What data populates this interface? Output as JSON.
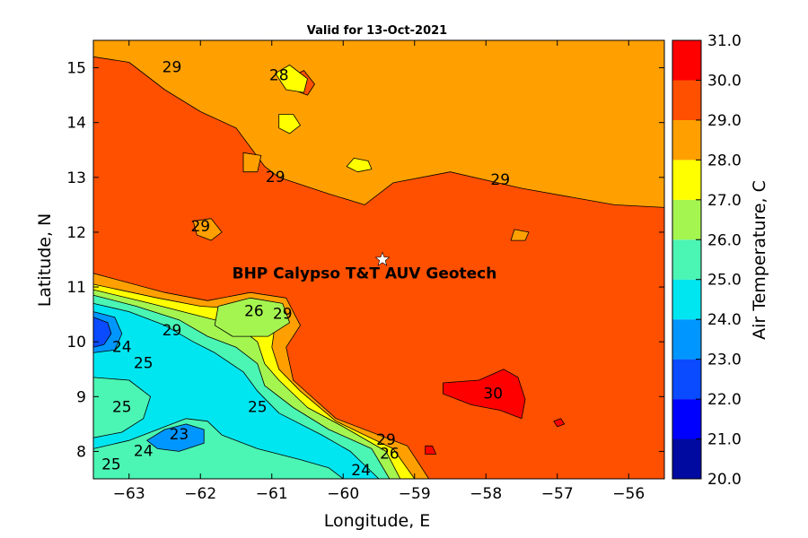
{
  "chart_data": {
    "type": "heatmap",
    "title": "Valid for 13-Oct-2021",
    "xlabel": "Longitude, E",
    "ylabel": "Latitude, N",
    "xlim": [
      -63.5,
      -55.5
    ],
    "ylim": [
      7.5,
      15.5
    ],
    "xticks": [
      -63,
      -62,
      -61,
      -60,
      -59,
      -58,
      -57,
      -56
    ],
    "yticks": [
      8,
      9,
      10,
      11,
      12,
      13,
      14,
      15
    ],
    "colorbar": {
      "label": "Air Temperature, C",
      "ticks": [
        "20.0",
        "21.0",
        "22.0",
        "23.0",
        "24.0",
        "25.0",
        "26.0",
        "27.0",
        "28.0",
        "29.0",
        "30.0",
        "31.0"
      ],
      "levels": [
        {
          "min": 20,
          "max": 21,
          "color": "#000aa0"
        },
        {
          "min": 21,
          "max": 22,
          "color": "#0000ff"
        },
        {
          "min": 22,
          "max": 23,
          "color": "#0a4bff"
        },
        {
          "min": 23,
          "max": 24,
          "color": "#0096ff"
        },
        {
          "min": 24,
          "max": 25,
          "color": "#00e6f0"
        },
        {
          "min": 25,
          "max": 26,
          "color": "#4bf5b4"
        },
        {
          "min": 26,
          "max": 27,
          "color": "#a5f550"
        },
        {
          "min": 27,
          "max": 28,
          "color": "#ffff00"
        },
        {
          "min": 28,
          "max": 29,
          "color": "#ffa000"
        },
        {
          "min": 29,
          "max": 30,
          "color": "#ff5000"
        },
        {
          "min": 30,
          "max": 31,
          "color": "#ff0000"
        }
      ]
    },
    "site": {
      "label": "BHP Calypso T&T AUV Geotech",
      "lon": -59.45,
      "lat": 11.5
    },
    "contour_labels": [
      {
        "text": "29",
        "lon": -62.4,
        "lat": 15.0
      },
      {
        "text": "28",
        "lon": -60.9,
        "lat": 14.85
      },
      {
        "text": "29",
        "lon": -60.95,
        "lat": 13.0
      },
      {
        "text": "29",
        "lon": -62.0,
        "lat": 12.1
      },
      {
        "text": "29",
        "lon": -57.8,
        "lat": 12.95
      },
      {
        "text": "26",
        "lon": -61.25,
        "lat": 10.55
      },
      {
        "text": "29",
        "lon": -60.85,
        "lat": 10.5
      },
      {
        "text": "29",
        "lon": -62.4,
        "lat": 10.2
      },
      {
        "text": "24",
        "lon": -63.1,
        "lat": 9.9
      },
      {
        "text": "25",
        "lon": -62.8,
        "lat": 9.6
      },
      {
        "text": "30",
        "lon": -57.9,
        "lat": 9.05
      },
      {
        "text": "25",
        "lon": -63.1,
        "lat": 8.8
      },
      {
        "text": "25",
        "lon": -61.2,
        "lat": 8.8
      },
      {
        "text": "23",
        "lon": -62.3,
        "lat": 8.3
      },
      {
        "text": "24",
        "lon": -62.8,
        "lat": 8.0
      },
      {
        "text": "25",
        "lon": -63.25,
        "lat": 7.75
      },
      {
        "text": "29",
        "lon": -59.4,
        "lat": 8.2
      },
      {
        "text": "26",
        "lon": -59.35,
        "lat": 7.95
      },
      {
        "text": "24",
        "lon": -59.75,
        "lat": 7.65
      }
    ],
    "regions": [
      {
        "value": 28.5,
        "polygon": [
          [
            -63.5,
            15.5
          ],
          [
            -55.5,
            15.5
          ],
          [
            -55.5,
            12.45
          ],
          [
            -56.2,
            12.5
          ],
          [
            -57.5,
            12.8
          ],
          [
            -58.5,
            13.1
          ],
          [
            -59.3,
            12.9
          ],
          [
            -59.7,
            12.5
          ],
          [
            -60.2,
            12.7
          ],
          [
            -60.9,
            13.0
          ],
          [
            -61.1,
            13.2
          ],
          [
            -61.5,
            13.9
          ],
          [
            -62.0,
            14.2
          ],
          [
            -62.5,
            14.6
          ],
          [
            -63.0,
            15.1
          ],
          [
            -63.5,
            15.2
          ]
        ]
      },
      {
        "value": 28.5,
        "polygon": [
          [
            -63.5,
            11.25
          ],
          [
            -62.5,
            10.9
          ],
          [
            -61.9,
            10.75
          ],
          [
            -61.3,
            10.9
          ],
          [
            -60.8,
            10.8
          ],
          [
            -60.6,
            10.3
          ],
          [
            -60.8,
            9.9
          ],
          [
            -60.7,
            9.3
          ],
          [
            -60.1,
            8.6
          ],
          [
            -59.1,
            8.1
          ],
          [
            -58.8,
            7.5
          ],
          [
            -63.5,
            7.5
          ]
        ]
      },
      {
        "value": 27.5,
        "polygon": [
          [
            -63.5,
            11.05
          ],
          [
            -62.6,
            10.8
          ],
          [
            -62.0,
            10.65
          ],
          [
            -61.4,
            10.6
          ],
          [
            -60.95,
            10.35
          ],
          [
            -61.0,
            9.9
          ],
          [
            -60.9,
            9.5
          ],
          [
            -60.6,
            9.1
          ],
          [
            -60.1,
            8.55
          ],
          [
            -59.3,
            8.05
          ],
          [
            -59.0,
            7.5
          ],
          [
            -63.5,
            7.5
          ]
        ]
      },
      {
        "value": 26.5,
        "polygon": [
          [
            -63.5,
            10.95
          ],
          [
            -62.7,
            10.7
          ],
          [
            -62.1,
            10.5
          ],
          [
            -61.5,
            10.3
          ],
          [
            -61.2,
            10.0
          ],
          [
            -61.1,
            9.6
          ],
          [
            -60.9,
            9.3
          ],
          [
            -60.5,
            8.8
          ],
          [
            -60.0,
            8.45
          ],
          [
            -59.4,
            8.0
          ],
          [
            -59.2,
            7.5
          ],
          [
            -63.5,
            7.5
          ]
        ]
      },
      {
        "value": 26.5,
        "polygon": [
          [
            -61.75,
            10.65
          ],
          [
            -61.3,
            10.8
          ],
          [
            -60.85,
            10.7
          ],
          [
            -60.75,
            10.35
          ],
          [
            -61.05,
            10.1
          ],
          [
            -61.55,
            10.1
          ],
          [
            -61.8,
            10.3
          ]
        ]
      },
      {
        "value": 25.5,
        "polygon": [
          [
            -63.5,
            10.85
          ],
          [
            -62.9,
            10.65
          ],
          [
            -62.3,
            10.4
          ],
          [
            -61.9,
            10.1
          ],
          [
            -61.5,
            9.9
          ],
          [
            -61.2,
            9.6
          ],
          [
            -61.1,
            9.2
          ],
          [
            -60.7,
            8.8
          ],
          [
            -60.2,
            8.4
          ],
          [
            -59.6,
            8.05
          ],
          [
            -59.35,
            7.5
          ],
          [
            -63.5,
            7.5
          ]
        ]
      },
      {
        "value": 24.5,
        "polygon": [
          [
            -63.5,
            10.7
          ],
          [
            -63.0,
            10.55
          ],
          [
            -62.5,
            10.3
          ],
          [
            -62.1,
            10.0
          ],
          [
            -61.8,
            9.8
          ],
          [
            -61.4,
            9.45
          ],
          [
            -61.2,
            9.1
          ],
          [
            -60.9,
            8.7
          ],
          [
            -60.3,
            8.3
          ],
          [
            -59.9,
            8.0
          ],
          [
            -59.5,
            7.5
          ],
          [
            -63.5,
            7.5
          ]
        ]
      },
      {
        "value": 25.5,
        "polygon": [
          [
            -63.5,
            9.35
          ],
          [
            -63.0,
            9.3
          ],
          [
            -62.7,
            9.0
          ],
          [
            -62.8,
            8.6
          ],
          [
            -63.1,
            8.35
          ],
          [
            -63.5,
            8.25
          ]
        ]
      },
      {
        "value": 25.5,
        "polygon": [
          [
            -63.5,
            8.05
          ],
          [
            -63.0,
            8.2
          ],
          [
            -62.5,
            8.45
          ],
          [
            -62.2,
            8.6
          ],
          [
            -61.9,
            8.55
          ],
          [
            -61.7,
            8.3
          ],
          [
            -61.2,
            8.05
          ],
          [
            -60.6,
            7.85
          ],
          [
            -60.2,
            7.7
          ],
          [
            -60.0,
            7.5
          ],
          [
            -63.5,
            7.5
          ]
        ]
      },
      {
        "value": 23.5,
        "polygon": [
          [
            -62.75,
            8.2
          ],
          [
            -62.5,
            8.4
          ],
          [
            -62.2,
            8.5
          ],
          [
            -61.95,
            8.4
          ],
          [
            -61.95,
            8.15
          ],
          [
            -62.3,
            8.0
          ],
          [
            -62.6,
            8.05
          ]
        ]
      },
      {
        "value": 23.5,
        "polygon": [
          [
            -63.5,
            10.55
          ],
          [
            -63.2,
            10.45
          ],
          [
            -63.1,
            10.15
          ],
          [
            -63.2,
            9.85
          ],
          [
            -63.5,
            9.8
          ]
        ]
      },
      {
        "value": 22.5,
        "polygon": [
          [
            -63.5,
            10.45
          ],
          [
            -63.3,
            10.35
          ],
          [
            -63.25,
            10.15
          ],
          [
            -63.35,
            9.95
          ],
          [
            -63.5,
            9.9
          ]
        ]
      },
      {
        "value": 30.5,
        "polygon": [
          [
            -58.6,
            9.25
          ],
          [
            -58.1,
            9.3
          ],
          [
            -57.75,
            9.5
          ],
          [
            -57.55,
            9.35
          ],
          [
            -57.45,
            8.95
          ],
          [
            -57.5,
            8.6
          ],
          [
            -57.8,
            8.75
          ],
          [
            -58.2,
            8.85
          ],
          [
            -58.6,
            9.05
          ]
        ]
      },
      {
        "value": 29.5,
        "polygon": [
          [
            -60.7,
            14.85
          ],
          [
            -60.55,
            14.95
          ],
          [
            -60.4,
            14.7
          ],
          [
            -60.5,
            14.5
          ],
          [
            -60.7,
            14.6
          ]
        ]
      },
      {
        "value": 27.5,
        "polygon": [
          [
            -60.95,
            14.9
          ],
          [
            -60.75,
            15.05
          ],
          [
            -60.5,
            14.8
          ],
          [
            -60.55,
            14.55
          ],
          [
            -60.8,
            14.6
          ]
        ]
      },
      {
        "value": 27.5,
        "polygon": [
          [
            -60.9,
            14.15
          ],
          [
            -60.7,
            14.15
          ],
          [
            -60.6,
            13.95
          ],
          [
            -60.75,
            13.8
          ],
          [
            -60.9,
            13.9
          ]
        ]
      },
      {
        "value": 27.5,
        "polygon": [
          [
            -59.85,
            13.35
          ],
          [
            -59.65,
            13.3
          ],
          [
            -59.6,
            13.15
          ],
          [
            -59.8,
            13.1
          ],
          [
            -59.95,
            13.2
          ]
        ]
      },
      {
        "value": 28.5,
        "polygon": [
          [
            -61.4,
            13.45
          ],
          [
            -61.15,
            13.4
          ],
          [
            -61.2,
            13.1
          ],
          [
            -61.4,
            13.1
          ]
        ]
      },
      {
        "value": 28.5,
        "polygon": [
          [
            -62.1,
            12.2
          ],
          [
            -61.85,
            12.25
          ],
          [
            -61.7,
            12.0
          ],
          [
            -61.85,
            11.85
          ],
          [
            -62.05,
            11.95
          ]
        ]
      },
      {
        "value": 28.5,
        "polygon": [
          [
            -57.6,
            12.05
          ],
          [
            -57.4,
            12.0
          ],
          [
            -57.45,
            11.85
          ],
          [
            -57.65,
            11.85
          ]
        ]
      },
      {
        "value": 30.5,
        "polygon": [
          [
            -57.05,
            8.55
          ],
          [
            -56.95,
            8.6
          ],
          [
            -56.9,
            8.5
          ],
          [
            -57.0,
            8.45
          ]
        ]
      },
      {
        "value": 30.5,
        "polygon": [
          [
            -58.85,
            8.1
          ],
          [
            -58.75,
            8.1
          ],
          [
            -58.7,
            7.95
          ],
          [
            -58.85,
            7.95
          ]
        ]
      }
    ]
  }
}
